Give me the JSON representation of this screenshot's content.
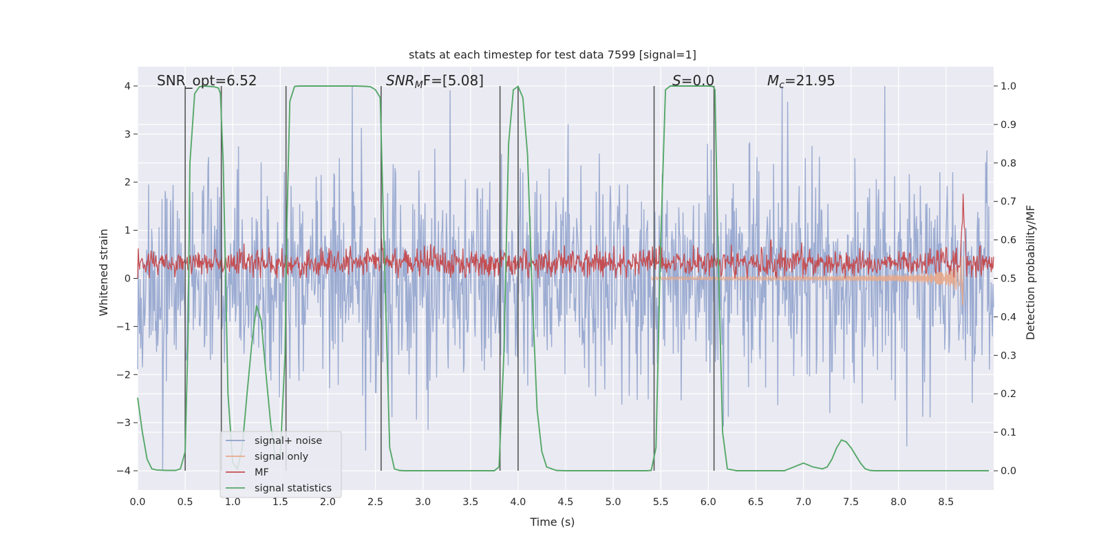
{
  "chart_data": {
    "type": "line",
    "title": "stats at each timestep for test data 7599 [signal=1]",
    "xlabel": "Time (s)",
    "ylabel": "Whitened strain",
    "ylabel_right": "Detection probability/MF",
    "xlim": [
      0,
      9
    ],
    "ylim": [
      -4.4,
      4.4
    ],
    "ylim_right": [
      -0.05,
      1.05
    ],
    "x_ticks": [
      "0.0",
      "0.5",
      "1.0",
      "1.5",
      "2.0",
      "2.5",
      "3.0",
      "3.5",
      "4.0",
      "4.5",
      "5.0",
      "5.5",
      "6.0",
      "6.5",
      "7.0",
      "7.5",
      "8.0",
      "8.5"
    ],
    "y_ticks": [
      "4",
      "3",
      "2",
      "1",
      "0",
      "−1",
      "−2",
      "−3",
      "−4"
    ],
    "y_ticks_right": [
      "1.0",
      "0.9",
      "0.8",
      "0.7",
      "0.6",
      "0.5",
      "0.4",
      "0.3",
      "0.2",
      "0.1",
      "0.0"
    ],
    "grid": true,
    "legend_position": "bottom-left",
    "annotations": {
      "snr_opt": "SNR_opt=6.52",
      "snr_mf_main": "SNR",
      "snr_mf_sub": "M",
      "snr_mf_tail": "F=[5.08]",
      "s_main": "S",
      "s_tail": "=0.0",
      "mc_main": "M",
      "mc_sub": "c",
      "mc_tail": "=21.95"
    },
    "vertical_lines_x": [
      0.5,
      0.88,
      1.56,
      2.56,
      3.81,
      4.0,
      5.43,
      6.06
    ],
    "series": [
      {
        "name": "signal+ noise",
        "color": "#8da0cb",
        "axis": "left",
        "style": "noise band, amplitude approx ±2.5 with spikes to ±4"
      },
      {
        "name": "signal only",
        "color": "#e8a88a",
        "axis": "left",
        "style": "chirp growing toward 8.68 s",
        "peak_x": 8.68,
        "peak_y": 1.6
      },
      {
        "name": "MF",
        "color": "#c44e52",
        "axis": "right",
        "style": "noisy around 0.51–0.58, spike near 8.68 s to 0.7"
      },
      {
        "name": "signal statistics",
        "color": "#55a868",
        "axis": "right",
        "x": [
          0.0,
          0.05,
          0.1,
          0.15,
          0.2,
          0.3,
          0.4,
          0.45,
          0.5,
          0.53,
          0.55,
          0.6,
          0.65,
          0.7,
          0.75,
          0.8,
          0.85,
          0.87,
          0.9,
          0.95,
          1.0,
          1.05,
          1.1,
          1.15,
          1.2,
          1.25,
          1.3,
          1.32,
          1.35,
          1.4,
          1.45,
          1.5,
          1.55,
          1.57,
          1.6,
          1.65,
          1.7,
          1.8,
          1.9,
          2.0,
          2.1,
          2.2,
          2.3,
          2.4,
          2.45,
          2.5,
          2.55,
          2.6,
          2.65,
          2.7,
          2.75,
          2.8,
          3.0,
          3.5,
          3.7,
          3.75,
          3.8,
          3.85,
          3.9,
          3.95,
          4.0,
          4.05,
          4.1,
          4.15,
          4.2,
          4.25,
          4.3,
          4.4,
          4.5,
          5.0,
          5.35,
          5.4,
          5.45,
          5.5,
          5.55,
          5.6,
          6.0,
          6.05,
          6.07,
          6.1,
          6.15,
          6.2,
          6.3,
          6.8,
          6.9,
          6.95,
          7.0,
          7.1,
          7.2,
          7.25,
          7.3,
          7.35,
          7.4,
          7.45,
          7.5,
          7.55,
          7.6,
          7.65,
          7.7,
          7.75,
          7.8,
          8.0,
          8.5,
          8.95
        ],
        "y": [
          0.19,
          0.1,
          0.03,
          0.005,
          0.002,
          0.001,
          0.001,
          0.005,
          0.05,
          0.35,
          0.8,
          0.98,
          0.998,
          1.0,
          0.999,
          0.998,
          0.995,
          0.98,
          0.8,
          0.2,
          0.02,
          0.005,
          0.06,
          0.2,
          0.33,
          0.43,
          0.39,
          0.33,
          0.25,
          0.12,
          0.03,
          0.04,
          0.3,
          0.65,
          0.96,
          0.999,
          1.0,
          1.0,
          1.0,
          1.0,
          1.0,
          1.0,
          1.0,
          0.999,
          0.998,
          0.99,
          0.97,
          0.5,
          0.06,
          0.005,
          0.001,
          0.0,
          0.0,
          0.0,
          0.0,
          0.0,
          0.01,
          0.3,
          0.85,
          0.99,
          0.999,
          0.97,
          0.82,
          0.45,
          0.16,
          0.05,
          0.01,
          0.001,
          0.0,
          0.0,
          0.0,
          0.001,
          0.06,
          0.6,
          0.99,
          1.0,
          1.0,
          0.999,
          0.99,
          0.6,
          0.1,
          0.005,
          0.0,
          0.0,
          0.01,
          0.015,
          0.02,
          0.01,
          0.005,
          0.01,
          0.03,
          0.06,
          0.08,
          0.075,
          0.06,
          0.04,
          0.02,
          0.005,
          0.001,
          0.0,
          0.0,
          0.0,
          0.0,
          0.0
        ]
      }
    ]
  }
}
